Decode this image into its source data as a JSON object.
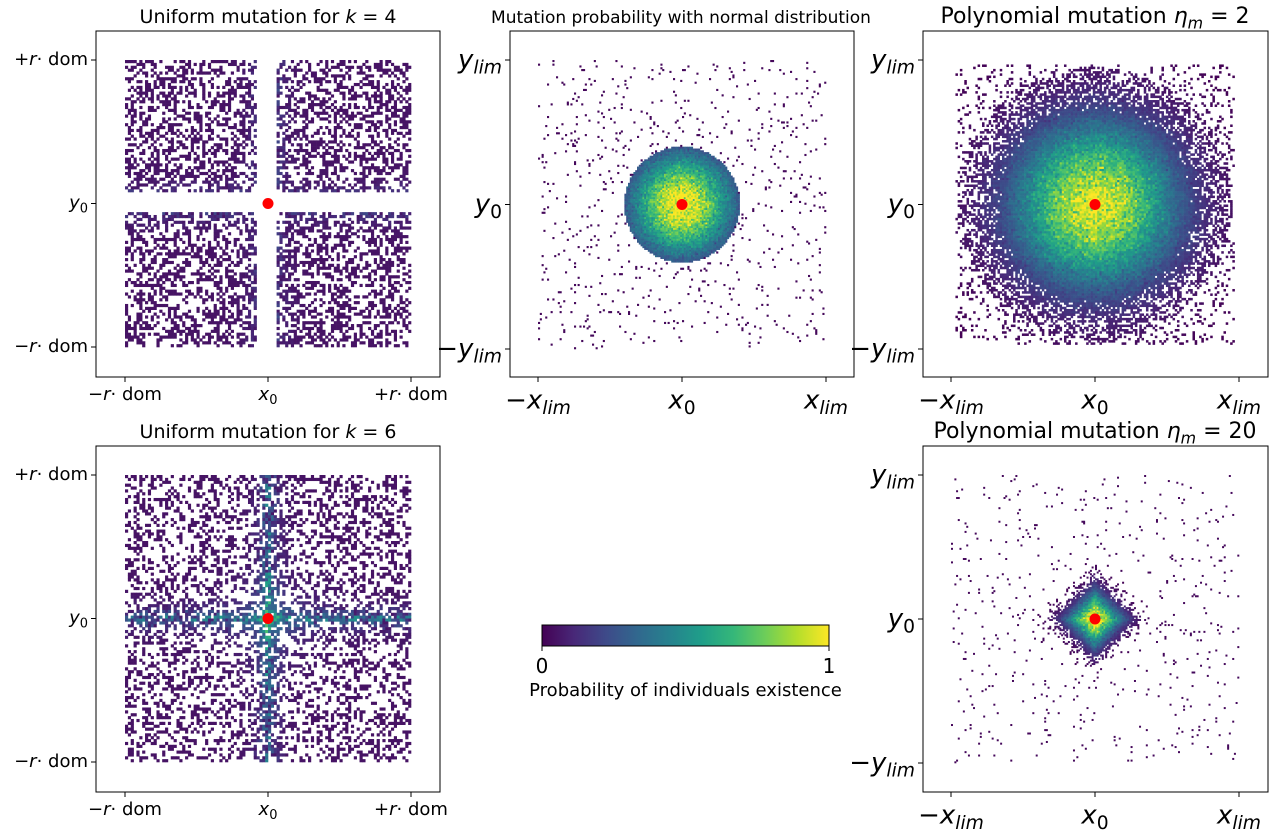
{
  "chart_data": [
    {
      "type": "heatmap",
      "title": "Uniform mutation for k = 4",
      "title_parts": {
        "text": "Uniform mutation for ",
        "var": "k",
        "rest": " = 4"
      },
      "kind": "uniform",
      "k": 4,
      "x_ticks": [
        "−r· dom",
        "x₀",
        "+r· dom"
      ],
      "y_ticks": [
        "+r· dom",
        "y₀",
        "−r· dom"
      ],
      "center_point": {
        "x": 0,
        "y": 0,
        "color": "#ff0000"
      }
    },
    {
      "type": "heatmap",
      "title": "Mutation probability with normal distribution",
      "kind": "normal",
      "x_ticks": [
        "−x_lim",
        "x₀",
        "x_lim"
      ],
      "y_ticks": [
        "y_lim",
        "y₀",
        "−y_lim"
      ],
      "center_point": {
        "x": 0,
        "y": 0,
        "color": "#ff0000"
      }
    },
    {
      "type": "heatmap",
      "title": "Polynomial mutation ηm = 2",
      "title_parts": {
        "text": "Polynomial mutation ",
        "var": "η",
        "sub": "m",
        "rest": " = 2"
      },
      "kind": "polynomial",
      "eta_m": 2,
      "x_ticks": [
        "−x_lim",
        "x₀",
        "x_lim"
      ],
      "y_ticks": [
        "y_lim",
        "y₀",
        "−y_lim"
      ],
      "center_point": {
        "x": 0,
        "y": 0,
        "color": "#ff0000"
      }
    },
    {
      "type": "heatmap",
      "title": "Uniform mutation for k = 6",
      "title_parts": {
        "text": "Uniform mutation for ",
        "var": "k",
        "rest": " = 6"
      },
      "kind": "uniform",
      "k": 6,
      "x_ticks": [
        "−r· dom",
        "x₀",
        "+r· dom"
      ],
      "y_ticks": [
        "+r· dom",
        "y₀",
        "−r· dom"
      ],
      "center_point": {
        "x": 0,
        "y": 0,
        "color": "#ff0000"
      }
    },
    {
      "type": "heatmap",
      "title": "Polynomial mutation ηm = 20",
      "title_parts": {
        "text": "Polynomial mutation ",
        "var": "η",
        "sub": "m",
        "rest": " = 20"
      },
      "kind": "polynomial",
      "eta_m": 20,
      "x_ticks": [
        "−x_lim",
        "x₀",
        "x_lim"
      ],
      "y_ticks": [
        "y_lim",
        "y₀",
        "−y_lim"
      ],
      "center_point": {
        "x": 0,
        "y": 0,
        "color": "#ff0000"
      }
    }
  ],
  "colorbar": {
    "label": "Probability of individuals existence",
    "min_label": "0",
    "max_label": "1",
    "range": [
      0,
      1
    ],
    "colormap": "viridis",
    "orientation": "horizontal"
  }
}
